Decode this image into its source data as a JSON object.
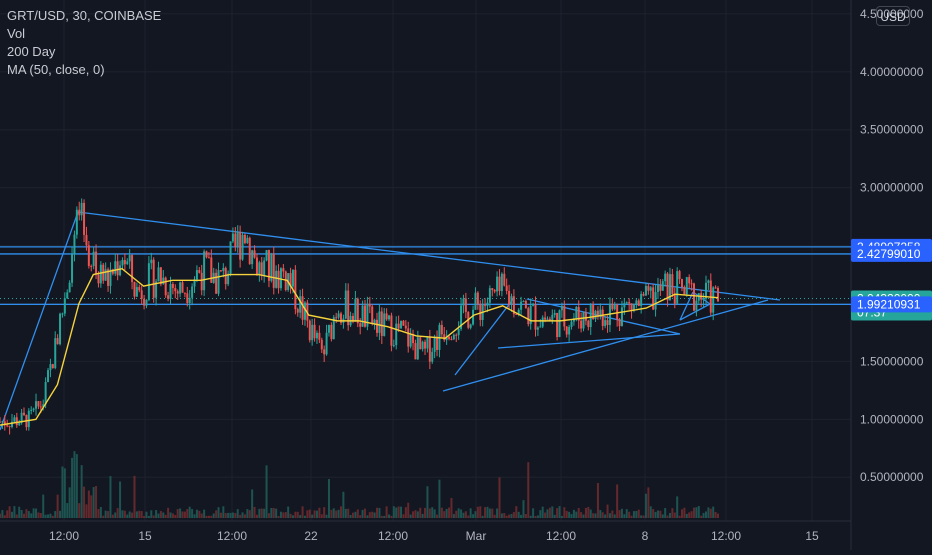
{
  "legend": {
    "symbol": "GRT/USD, 30, COINBASE",
    "vol": "Vol",
    "ma200": "200 Day",
    "ma50": "MA (50, close, 0)"
  },
  "currency_button": "USD",
  "colors": {
    "background": "#131722",
    "grid": "#1e222d",
    "axis_text": "#b2b5be",
    "trendline": "#2f8ff0",
    "ma": "#f5d33c",
    "candle_up": "#26a69a",
    "candle_down": "#ef5350",
    "current_price": "#26a69a",
    "level_label": "#2962ff"
  },
  "chart_data": {
    "type": "candlestick",
    "ylim": [
      0.2,
      4.62
    ],
    "y_ticks": [
      {
        "value": 0.5,
        "label": "0.50000000"
      },
      {
        "value": 1.0,
        "label": "1.00000000"
      },
      {
        "value": 1.5,
        "label": "1.50000000"
      },
      {
        "value": 2.0,
        "label": "2.00000000"
      },
      {
        "value": 2.5,
        "label": "2.50000000"
      },
      {
        "value": 3.0,
        "label": "3.00000000"
      },
      {
        "value": 3.5,
        "label": "3.50000000"
      },
      {
        "value": 4.0,
        "label": "4.00000000"
      },
      {
        "value": 4.5,
        "label": "4.50000000"
      }
    ],
    "x_ticks": [
      "12:00",
      "15",
      "12:00",
      "22",
      "12:00",
      "Mar",
      "12:00",
      "8",
      "12:00",
      "15"
    ],
    "price_labels": [
      {
        "value": 2.48907258,
        "label": "2.48907258",
        "kind": "level"
      },
      {
        "value": 2.4279901,
        "label": "2.42799010",
        "kind": "level"
      },
      {
        "value": 2.0432,
        "label": "2.04320000",
        "kind": "current",
        "countdown": "07:37"
      },
      {
        "value": 1.99210931,
        "label": "1.99210931",
        "kind": "level"
      }
    ],
    "price_path": [
      [
        0.0,
        0.98
      ],
      [
        0.04,
        1.0
      ],
      [
        0.06,
        1.15
      ],
      [
        0.08,
        1.7
      ],
      [
        0.1,
        2.4
      ],
      [
        0.11,
        2.75
      ],
      [
        0.13,
        2.3
      ],
      [
        0.15,
        2.2
      ],
      [
        0.17,
        2.45
      ],
      [
        0.19,
        2.1
      ],
      [
        0.22,
        2.25
      ],
      [
        0.25,
        2.1
      ],
      [
        0.28,
        2.3
      ],
      [
        0.31,
        2.2
      ],
      [
        0.34,
        2.65
      ],
      [
        0.36,
        2.3
      ],
      [
        0.4,
        2.25
      ],
      [
        0.43,
        1.8
      ],
      [
        0.45,
        1.55
      ],
      [
        0.47,
        2.0
      ],
      [
        0.5,
        1.9
      ],
      [
        0.53,
        1.8
      ],
      [
        0.56,
        1.75
      ],
      [
        0.59,
        1.55
      ],
      [
        0.62,
        1.8
      ],
      [
        0.66,
        1.95
      ],
      [
        0.7,
        2.1
      ],
      [
        0.74,
        1.9
      ],
      [
        0.78,
        1.85
      ],
      [
        0.82,
        1.9
      ],
      [
        0.86,
        1.95
      ],
      [
        0.9,
        2.0
      ],
      [
        0.93,
        2.15
      ],
      [
        0.96,
        2.08
      ],
      [
        1.0,
        2.04
      ]
    ],
    "ma_path": [
      [
        0.0,
        0.95
      ],
      [
        0.05,
        1.0
      ],
      [
        0.08,
        1.3
      ],
      [
        0.11,
        2.0
      ],
      [
        0.13,
        2.25
      ],
      [
        0.17,
        2.3
      ],
      [
        0.2,
        2.15
      ],
      [
        0.24,
        2.2
      ],
      [
        0.28,
        2.2
      ],
      [
        0.32,
        2.25
      ],
      [
        0.36,
        2.25
      ],
      [
        0.4,
        2.2
      ],
      [
        0.43,
        1.9
      ],
      [
        0.47,
        1.85
      ],
      [
        0.5,
        1.85
      ],
      [
        0.54,
        1.8
      ],
      [
        0.58,
        1.72
      ],
      [
        0.62,
        1.7
      ],
      [
        0.66,
        1.9
      ],
      [
        0.7,
        1.98
      ],
      [
        0.74,
        1.85
      ],
      [
        0.78,
        1.85
      ],
      [
        0.82,
        1.88
      ],
      [
        0.86,
        1.92
      ],
      [
        0.9,
        1.96
      ],
      [
        0.94,
        2.08
      ],
      [
        1.0,
        2.05
      ]
    ]
  }
}
